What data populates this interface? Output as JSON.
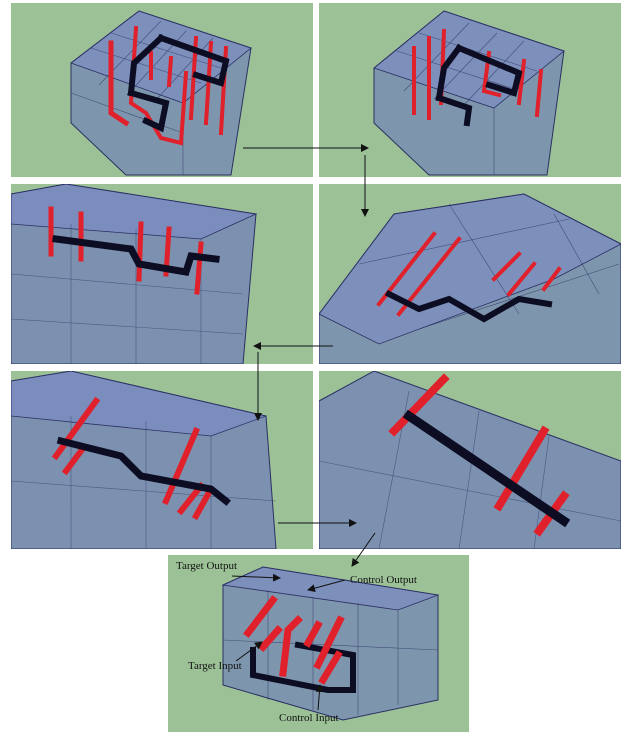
{
  "figure": {
    "panels": [
      {
        "id": "step-1",
        "view": "top-oblique"
      },
      {
        "id": "step-2",
        "view": "top-oblique"
      },
      {
        "id": "step-3",
        "view": "close-left"
      },
      {
        "id": "step-4",
        "view": "oblique-right"
      },
      {
        "id": "step-5",
        "view": "close-left"
      },
      {
        "id": "step-6",
        "view": "close-right"
      },
      {
        "id": "result",
        "view": "compact"
      }
    ],
    "labels": {
      "target_output": "Target Output",
      "control_output": "Control Output",
      "target_input": "Target Input",
      "control_input": "Control Input"
    },
    "colors": {
      "background": "#9cc197",
      "glass": "#5a62c8",
      "glass_edge": "#2b2f63",
      "red_strand": "#e0202a",
      "dark_strand": "#0c0c22"
    }
  }
}
